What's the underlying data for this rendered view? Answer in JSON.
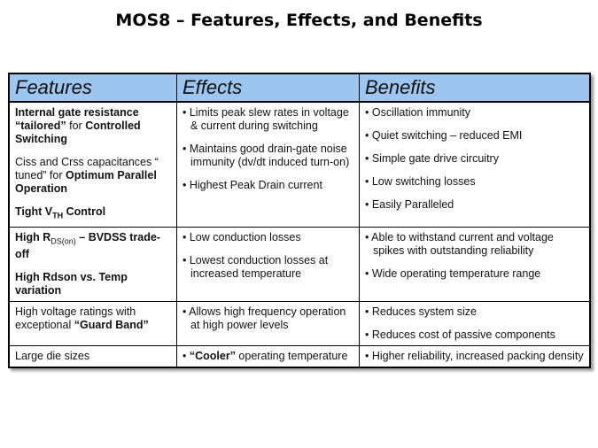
{
  "title": "MOS8 – Features, Effects, and Benefits",
  "headers": [
    "Features",
    "Effects",
    "Benefits"
  ],
  "rows": [
    {
      "features": [
        [
          {
            "t": "Internal gate resistance “tailored”",
            "b": 1
          },
          {
            "t": " for ",
            "b": 0
          },
          {
            "t": "Controlled Switching",
            "b": 1
          }
        ],
        [
          {
            "t": "Ciss and Crss capacitances “ tuned” for ",
            "b": 0
          },
          {
            "t": "Optimum Parallel Operation",
            "b": 1
          }
        ],
        [
          {
            "t": "Tight V",
            "b": 1
          },
          {
            "t": "TH",
            "b": 1,
            "sub": 1
          },
          {
            "t": " Control",
            "b": 1
          }
        ]
      ],
      "effects": [
        [
          {
            "t": "• Limits peak slew rates in voltage & current during switching",
            "b": 0
          }
        ],
        [
          {
            "t": "• Maintains good drain-gate noise immunity (dv/dt induced turn-on)",
            "b": 0
          }
        ],
        [
          {
            "t": "• Highest Peak Drain current",
            "b": 0
          }
        ]
      ],
      "benefits": [
        [
          {
            "t": "• Oscillation immunity",
            "b": 0
          }
        ],
        [
          {
            "t": "• Quiet switching – reduced EMI",
            "b": 0
          }
        ],
        [
          {
            "t": "• Simple gate drive circuitry",
            "b": 0
          }
        ],
        [
          {
            "t": "• Low switching losses",
            "b": 0
          }
        ],
        [
          {
            "t": "• Easily Paralleled",
            "b": 0
          }
        ]
      ]
    },
    {
      "features": [
        [
          {
            "t": "High R",
            "b": 1
          },
          {
            "t": "DS(on)",
            "b": 0,
            "sub": 1
          },
          {
            "t": " – BVDSS trade-off",
            "b": 1
          }
        ],
        [
          {
            "t": "High Rdson vs. Temp variation",
            "b": 1
          }
        ]
      ],
      "effects": [
        [
          {
            "t": "• Low conduction losses",
            "b": 0
          }
        ],
        [
          {
            "t": "• Lowest conduction losses at increased temperature",
            "b": 0
          }
        ]
      ],
      "benefits": [
        [
          {
            "t": "• Able to withstand current and voltage spikes with outstanding reliability",
            "b": 0
          }
        ],
        [
          {
            "t": "• Wide operating temperature range",
            "b": 0
          }
        ]
      ]
    },
    {
      "features": [
        [
          {
            "t": "High voltage ratings with exceptional ",
            "b": 0
          },
          {
            "t": "“Guard Band”",
            "b": 1
          }
        ]
      ],
      "effects": [
        [
          {
            "t": "• Allows high frequency operation at high power levels",
            "b": 0
          }
        ]
      ],
      "benefits": [
        [
          {
            "t": "• Reduces system size",
            "b": 0
          }
        ],
        [
          {
            "t": "• Reduces cost of passive components",
            "b": 0
          }
        ]
      ]
    },
    {
      "features": [
        [
          {
            "t": "Large die sizes",
            "b": 0
          }
        ]
      ],
      "effects": [
        [
          {
            "t": "• ",
            "b": 0
          },
          {
            "t": "“Cooler”",
            "b": 1
          },
          {
            "t": " operating temperature",
            "b": 0
          }
        ]
      ],
      "benefits": [
        [
          {
            "t": "• Higher reliability, increased packing density",
            "b": 0
          }
        ]
      ]
    }
  ]
}
